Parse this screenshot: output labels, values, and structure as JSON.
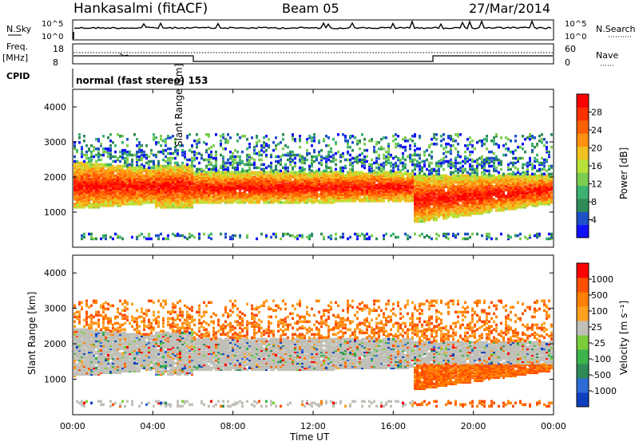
{
  "header": {
    "station": "Hankasalmi (fitACF)",
    "beam": "Beam 05",
    "date": "27/Mar/2014"
  },
  "noise_panel": {
    "left_label": "N.Sky",
    "right_label": "N.Search",
    "left_ticks": [
      "10^5",
      "10^0"
    ],
    "right_ticks": [
      "10^5",
      "10^0"
    ]
  },
  "freq_panel": {
    "left_label_1": "Freq.",
    "left_label_2": "[MHz]",
    "left_ticks": [
      "18",
      "8"
    ],
    "right_label": "Nave",
    "right_ticks": [
      "60",
      "0"
    ]
  },
  "cpid_panel": {
    "label": "CPID",
    "text": "normal (fast stereo) 153"
  },
  "power_panel": {
    "ylabel": "Slant Range [km]",
    "yticks": [
      "4000",
      "3000",
      "2000",
      "1000"
    ],
    "colorbar_label": "Power [dB]",
    "colorbar_ticks": [
      "28",
      "24",
      "20",
      "16",
      "12",
      "8",
      "4"
    ],
    "colors": [
      "#1010ff",
      "#2050c8",
      "#2e8b57",
      "#3cb371",
      "#7ccd50",
      "#b8e23a",
      "#f0c020",
      "#ff9010",
      "#ff6000",
      "#ff3000",
      "#ff0000"
    ]
  },
  "velocity_panel": {
    "ylabel": "Slant Range [km]",
    "yticks": [
      "4000",
      "3000",
      "2000",
      "1000"
    ],
    "colorbar_label": "Velocity [m s⁻¹]",
    "colorbar_ticks": [
      "1000",
      "500",
      "100",
      "25",
      "-25",
      "-100",
      "-500",
      "-1000"
    ],
    "colors": [
      "#1040c0",
      "#2d6bd8",
      "#2e8b57",
      "#3cb44b",
      "#7ccd3c",
      "#c0c0b8",
      "#ffa020",
      "#ff8000",
      "#ff5000",
      "#ff0000"
    ]
  },
  "xaxis": {
    "ticks": [
      "00:00",
      "04:00",
      "08:00",
      "12:00",
      "16:00",
      "20:00",
      "00:00"
    ],
    "label": "Time UT"
  },
  "chart_data": {
    "type": "heatmap",
    "x_range_hours": [
      0,
      24
    ],
    "y_range_km": [
      0,
      4500
    ],
    "panels": [
      {
        "name": "Power",
        "unit": "dB",
        "color_range": [
          0,
          30
        ],
        "dominant_echo_band_km": [
          1000,
          2200
        ],
        "upper_echo_km": [
          2400,
          3200
        ]
      },
      {
        "name": "Velocity",
        "unit": "m s^-1",
        "color_range": [
          -1000,
          1000
        ],
        "dominant_echo_band_km": [
          1200,
          2200
        ]
      }
    ],
    "nave_step": {
      "low_hours": [
        6,
        18
      ]
    }
  }
}
